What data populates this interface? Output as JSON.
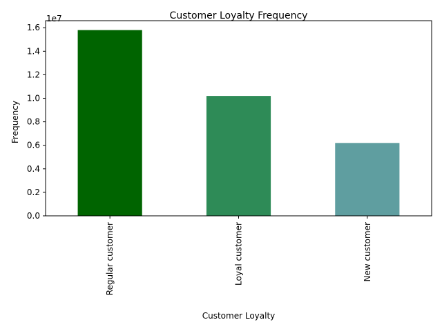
{
  "chart_data": {
    "type": "bar",
    "title": "Customer Loyalty Frequency",
    "xlabel": "Customer Loyalty",
    "ylabel": "Frequency",
    "y_offset_label": "1e7",
    "y_scale_factor": 10000000,
    "categories": [
      "Regular customer",
      "Loyal customer",
      "New customer"
    ],
    "values": [
      15800000,
      10200000,
      6200000
    ],
    "colors": [
      "#006400",
      "#2E8B57",
      "#5F9EA0"
    ],
    "ylim": [
      0,
      16600000
    ],
    "yticks": [
      0,
      2000000,
      4000000,
      6000000,
      8000000,
      10000000,
      12000000,
      14000000,
      16000000
    ],
    "ytick_labels": [
      "0.0",
      "0.2",
      "0.4",
      "0.6",
      "0.8",
      "1.0",
      "1.2",
      "1.4",
      "1.6"
    ],
    "grid": false,
    "legend": "none"
  }
}
